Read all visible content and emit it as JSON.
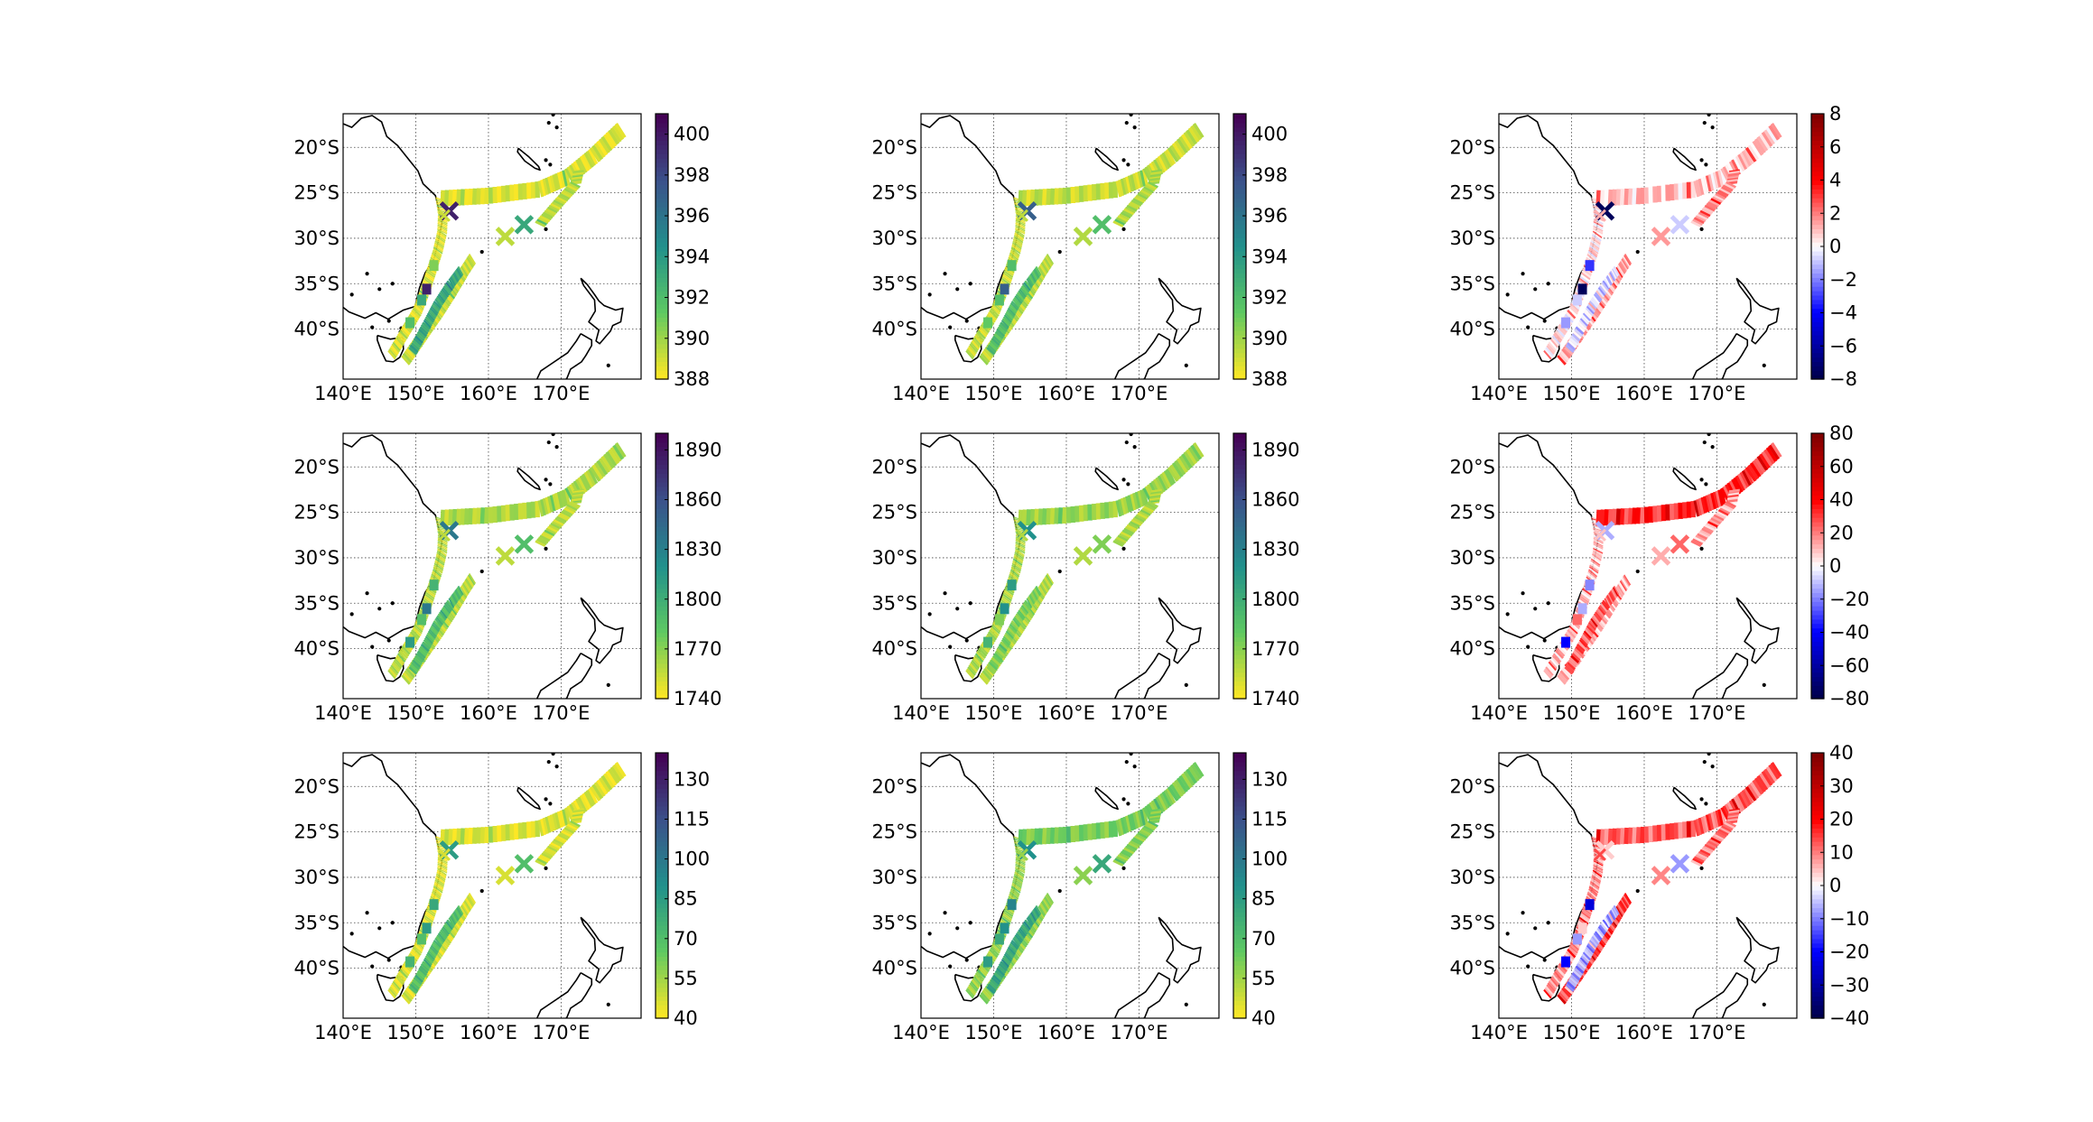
{
  "figure": {
    "layout": "3x3 grid of map panels, each with a vertical colorbar",
    "background": "#ffffff"
  },
  "chart_data": [
    {
      "type": "map",
      "name": "row1-col1",
      "row": 1,
      "col": 1,
      "map": {
        "lon_ticks": [
          "140°E",
          "150°E",
          "160°E",
          "170°E"
        ],
        "lat_ticks": [
          "20°S",
          "25°S",
          "30°S",
          "35°S",
          "40°S"
        ],
        "grid": true
      },
      "colorbar": {
        "cmap": "viridis_r",
        "min": 388,
        "max": 401,
        "ticks": [
          "388",
          "390",
          "392",
          "394",
          "396",
          "398",
          "400"
        ]
      },
      "track_value_typical": 389,
      "track_value_range": [
        388,
        397
      ]
    },
    {
      "type": "map",
      "name": "row1-col2",
      "row": 1,
      "col": 2,
      "map": {
        "lon_ticks": [
          "140°E",
          "150°E",
          "160°E",
          "170°E"
        ],
        "lat_ticks": [
          "20°S",
          "25°S",
          "30°S",
          "35°S",
          "40°S"
        ],
        "grid": true
      },
      "colorbar": {
        "cmap": "viridis_r",
        "min": 388,
        "max": 401,
        "ticks": [
          "388",
          "390",
          "392",
          "394",
          "396",
          "398",
          "400"
        ]
      },
      "track_value_typical": 389.5,
      "track_value_range": [
        388,
        396
      ]
    },
    {
      "type": "map",
      "name": "row1-col3",
      "row": 1,
      "col": 3,
      "map": {
        "lon_ticks": [
          "140°E",
          "150°E",
          "160°E",
          "170°E"
        ],
        "lat_ticks": [
          "20°S",
          "25°S",
          "30°S",
          "35°S",
          "40°S"
        ],
        "grid": true
      },
      "colorbar": {
        "cmap": "seismic",
        "min": -8,
        "max": 8,
        "ticks": [
          "−8",
          "−6",
          "−4",
          "−2",
          "0",
          "2",
          "4",
          "6",
          "8"
        ]
      },
      "track_value_typical": 0.6,
      "track_value_range": [
        -8,
        4
      ]
    },
    {
      "type": "map",
      "name": "row2-col1",
      "row": 2,
      "col": 1,
      "map": {
        "lon_ticks": [
          "140°E",
          "150°E",
          "160°E",
          "170°E"
        ],
        "lat_ticks": [
          "20°S",
          "25°S",
          "30°S",
          "35°S",
          "40°S"
        ],
        "grid": true
      },
      "colorbar": {
        "cmap": "viridis_r",
        "min": 1740,
        "max": 1900,
        "ticks": [
          "1740",
          "1770",
          "1800",
          "1830",
          "1860",
          "1890"
        ]
      },
      "track_value_typical": 1760,
      "track_value_range": [
        1740,
        1840
      ]
    },
    {
      "type": "map",
      "name": "row2-col2",
      "row": 2,
      "col": 2,
      "map": {
        "lon_ticks": [
          "140°E",
          "150°E",
          "160°E",
          "170°E"
        ],
        "lat_ticks": [
          "20°S",
          "25°S",
          "30°S",
          "35°S",
          "40°S"
        ],
        "grid": true
      },
      "colorbar": {
        "cmap": "viridis_r",
        "min": 1740,
        "max": 1900,
        "ticks": [
          "1740",
          "1770",
          "1800",
          "1830",
          "1860",
          "1890"
        ]
      },
      "track_value_typical": 1762,
      "track_value_range": [
        1740,
        1820
      ]
    },
    {
      "type": "map",
      "name": "row2-col3",
      "row": 2,
      "col": 3,
      "map": {
        "lon_ticks": [
          "140°E",
          "150°E",
          "160°E",
          "170°E"
        ],
        "lat_ticks": [
          "20°S",
          "25°S",
          "30°S",
          "35°S",
          "40°S"
        ],
        "grid": true
      },
      "colorbar": {
        "cmap": "seismic",
        "min": -80,
        "max": 80,
        "ticks": [
          "−80",
          "−60",
          "−40",
          "−20",
          "0",
          "20",
          "40",
          "60",
          "80"
        ]
      },
      "track_value_typical": 8,
      "track_value_range": [
        -60,
        60
      ]
    },
    {
      "type": "map",
      "name": "row3-col1",
      "row": 3,
      "col": 1,
      "map": {
        "lon_ticks": [
          "140°E",
          "150°E",
          "160°E",
          "170°E"
        ],
        "lat_ticks": [
          "20°S",
          "25°S",
          "30°S",
          "35°S",
          "40°S"
        ],
        "grid": true
      },
      "colorbar": {
        "cmap": "viridis_r",
        "min": 40,
        "max": 140,
        "ticks": [
          "40",
          "55",
          "70",
          "85",
          "100",
          "115",
          "130"
        ]
      },
      "track_value_typical": 47,
      "track_value_range": [
        40,
        90
      ]
    },
    {
      "type": "map",
      "name": "row3-col2",
      "row": 3,
      "col": 2,
      "map": {
        "lon_ticks": [
          "140°E",
          "150°E",
          "160°E",
          "170°E"
        ],
        "lat_ticks": [
          "20°S",
          "25°S",
          "30°S",
          "35°S",
          "40°S"
        ],
        "grid": true
      },
      "colorbar": {
        "cmap": "viridis_r",
        "min": 40,
        "max": 140,
        "ticks": [
          "40",
          "55",
          "70",
          "85",
          "100",
          "115",
          "130"
        ]
      },
      "track_value_typical": 55,
      "track_value_range": [
        40,
        85
      ]
    },
    {
      "type": "map",
      "name": "row3-col3",
      "row": 3,
      "col": 3,
      "map": {
        "lon_ticks": [
          "140°E",
          "150°E",
          "160°E",
          "170°E"
        ],
        "lat_ticks": [
          "20°S",
          "25°S",
          "30°S",
          "35°S",
          "40°S"
        ],
        "grid": true
      },
      "colorbar": {
        "cmap": "seismic",
        "min": -40,
        "max": 40,
        "ticks": [
          "−40",
          "−30",
          "−20",
          "−10",
          "0",
          "10",
          "20",
          "30",
          "40"
        ]
      },
      "track_value_typical": 9,
      "track_value_range": [
        -35,
        40
      ]
    }
  ]
}
